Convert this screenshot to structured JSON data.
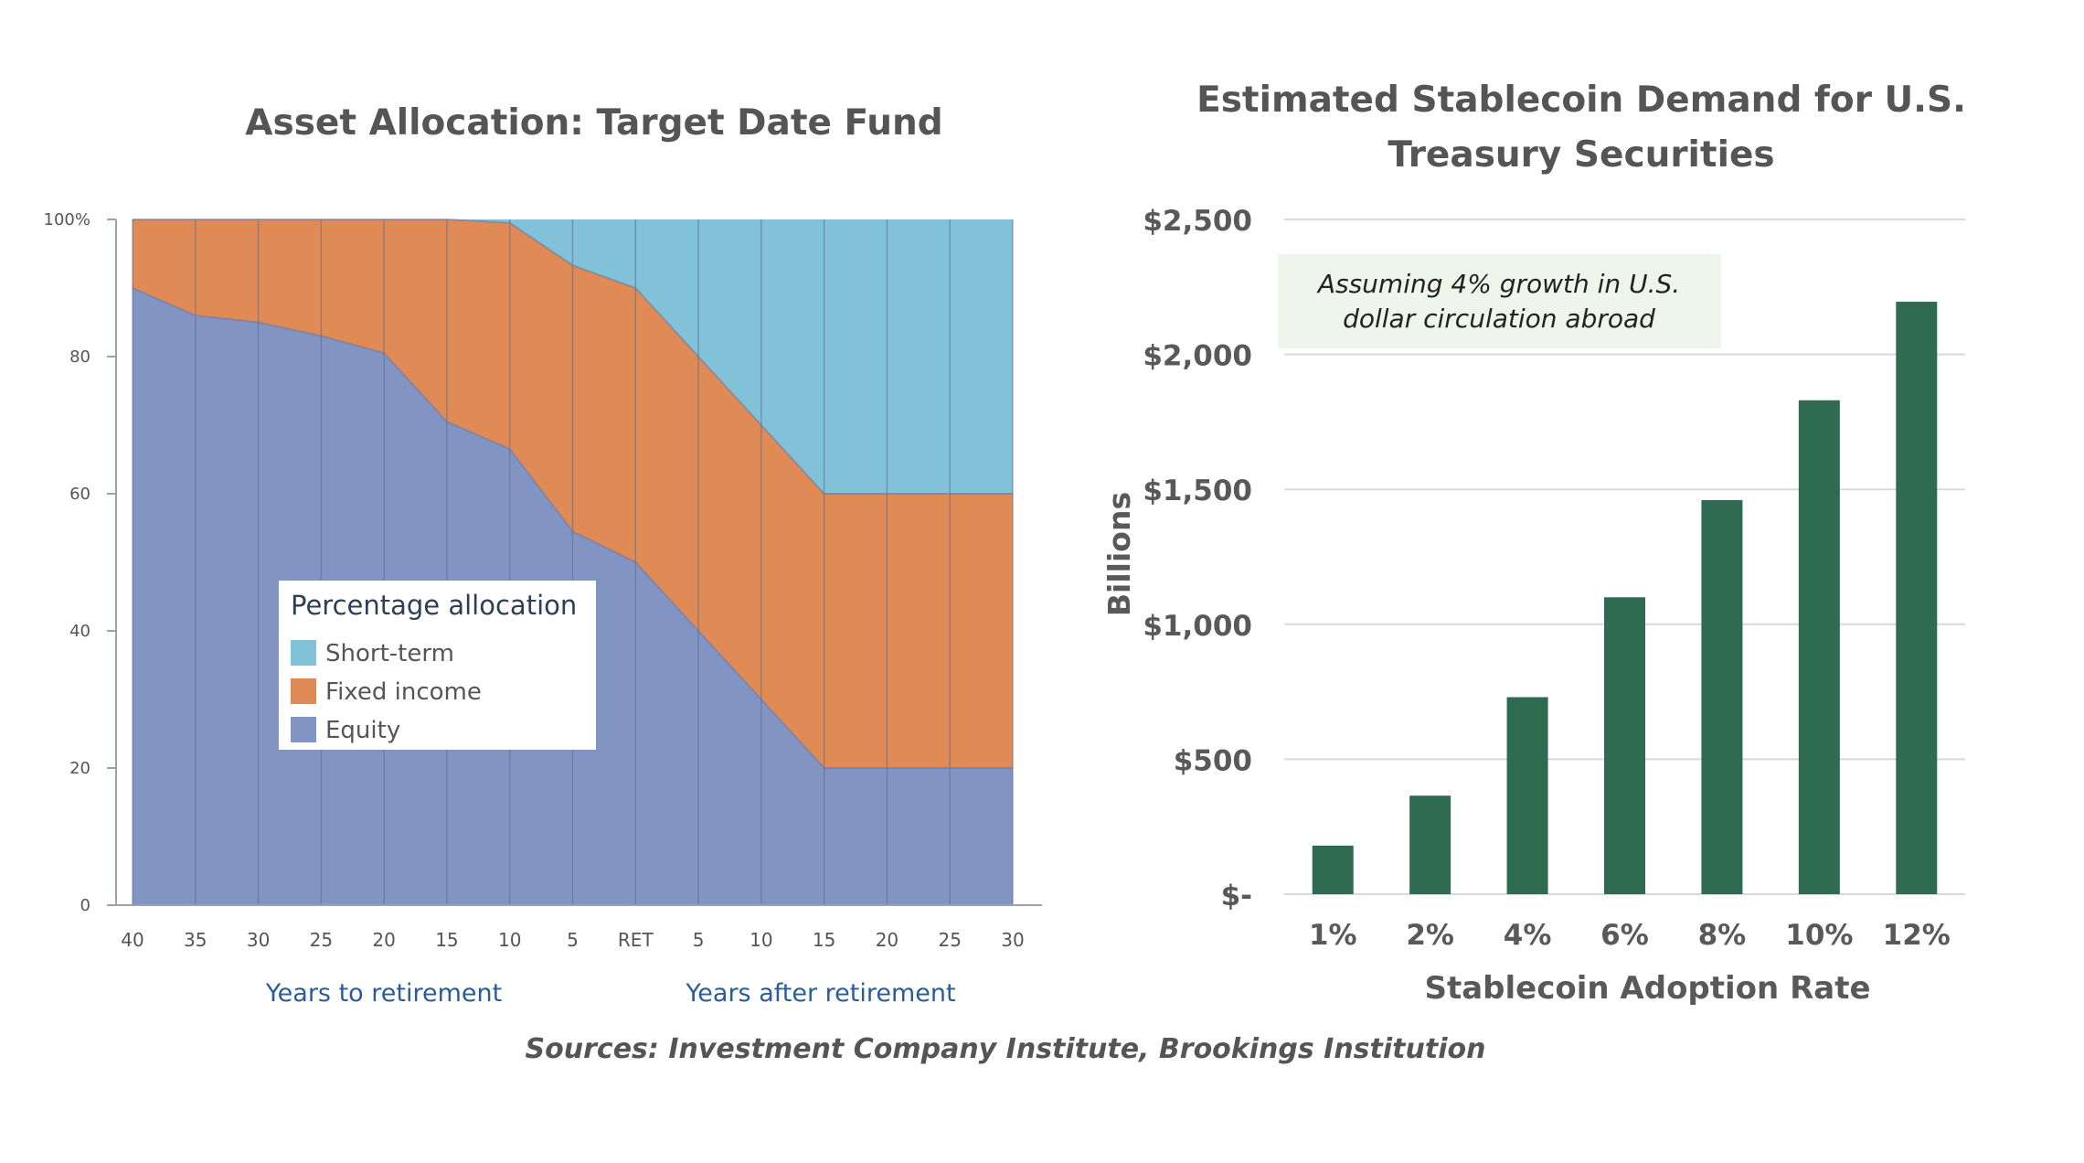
{
  "left_title": "Asset Allocation: Target Date Fund",
  "right_title_line1": "Estimated Stablecoin Demand for U.S.",
  "right_title_line2": "Treasury Securities",
  "sources": "Sources: Investment Company Institute, Brookings Institution",
  "chart_data": [
    {
      "type": "area",
      "title": "Asset Allocation: Target Date Fund",
      "stacked": true,
      "x": [
        "40",
        "35",
        "30",
        "25",
        "20",
        "15",
        "10",
        "5",
        "RET",
        "5",
        "10",
        "15",
        "20",
        "25",
        "30"
      ],
      "x_group_labels": [
        "Years to retirement",
        "Years after retirement"
      ],
      "y_ticks": [
        "0",
        "20",
        "40",
        "60",
        "80",
        "100%"
      ],
      "ylim": [
        0,
        100
      ],
      "legend_title": "Percentage allocation",
      "legend_position": "center-left",
      "series": [
        {
          "name": "Equity",
          "color": "#8294c4",
          "values": [
            90,
            86,
            85,
            83,
            80.5,
            70.5,
            66.5,
            54.5,
            50,
            40,
            30,
            20,
            20,
            20,
            20
          ]
        },
        {
          "name": "Fixed income",
          "color": "#e08a55",
          "values": [
            10,
            14,
            15,
            17,
            19.5,
            29.5,
            33,
            38.8,
            40,
            40,
            40,
            40,
            40,
            40,
            40
          ]
        },
        {
          "name": "Short-term",
          "color": "#82c2d8",
          "values": [
            0,
            0,
            0,
            0,
            0,
            0,
            0.5,
            6.7,
            10,
            20,
            30,
            40,
            40,
            40,
            40
          ]
        }
      ],
      "legend_order": [
        "Short-term",
        "Fixed income",
        "Equity"
      ],
      "grid": false
    },
    {
      "type": "bar",
      "title": "Estimated Stablecoin Demand for U.S. Treasury Securities",
      "categories": [
        "1%",
        "2%",
        "4%",
        "6%",
        "8%",
        "10%",
        "12%"
      ],
      "values": [
        180,
        365,
        730,
        1100,
        1460,
        1830,
        2195
      ],
      "xlabel": "Stablecoin Adoption Rate",
      "ylabel": "Billions",
      "ylim": [
        0,
        2500
      ],
      "y_ticks": [
        "$-",
        "$500",
        "$1,000",
        "$1,500",
        "$2,000",
        "$2,500"
      ],
      "bar_color": "#2e6b50",
      "grid": true,
      "annotation_line1": "Assuming 4% growth in U.S.",
      "annotation_line2": "dollar circulation abroad"
    }
  ]
}
